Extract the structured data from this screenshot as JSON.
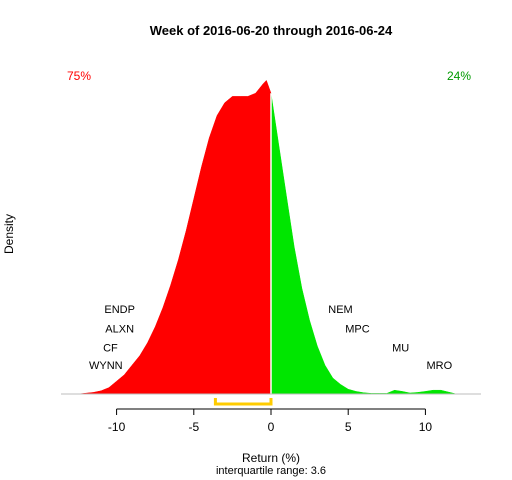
{
  "chart_data": {
    "type": "area",
    "title": "Week of 2016-06-20 through 2016-06-24",
    "xlabel": "Return (%)",
    "subtitle": "interquartile range: 3.6",
    "ylabel": "Density",
    "xlim": [
      -13.6,
      13.6
    ],
    "ylim": [
      0,
      0.105
    ],
    "x_ticks": [
      -10,
      -5,
      0,
      5,
      10
    ],
    "x_tick_labels": [
      "-10",
      "-5",
      "0",
      "5",
      "10"
    ],
    "density": {
      "x": [
        -12.5,
        -11.5,
        -11,
        -10.5,
        -10,
        -9.5,
        -9,
        -8.5,
        -8,
        -7.5,
        -7,
        -6.5,
        -6,
        -5.5,
        -5,
        -4.5,
        -4,
        -3.5,
        -3,
        -2.5,
        -2,
        -1.5,
        -1,
        -0.5,
        -0.3,
        0,
        0.5,
        1,
        1.5,
        2,
        2.5,
        3,
        3.5,
        4,
        4.5,
        5,
        5.5,
        6,
        6.5,
        7,
        7.5,
        8,
        8.5,
        9,
        9.5,
        10,
        10.5,
        11,
        11.5,
        12
      ],
      "y": [
        0,
        0.0005,
        0.001,
        0.002,
        0.004,
        0.006,
        0.009,
        0.012,
        0.016,
        0.021,
        0.027,
        0.034,
        0.042,
        0.051,
        0.061,
        0.071,
        0.08,
        0.087,
        0.091,
        0.093,
        0.093,
        0.093,
        0.094,
        0.097,
        0.098,
        0.094,
        0.078,
        0.062,
        0.046,
        0.033,
        0.023,
        0.015,
        0.009,
        0.005,
        0.003,
        0.0015,
        0.0008,
        0.0004,
        0.0002,
        0.0002,
        0.0002,
        0.0012,
        0.0008,
        0.0003,
        0.0005,
        0.0008,
        0.0012,
        0.0012,
        0.0006,
        0
      ]
    },
    "split_at": 0,
    "left_color": "#ff0000",
    "right_color": "#00e600",
    "left_percent_label": "75%",
    "right_percent_label": "24%",
    "iqr_bracket": {
      "from": -3.6,
      "to": 0,
      "color": "#ffcc00"
    },
    "annotations": [
      {
        "label": "ENDP",
        "x": -9.8,
        "y": 0.0265
      },
      {
        "label": "ALXN",
        "x": -9.8,
        "y": 0.0205
      },
      {
        "label": "CF",
        "x": -10.4,
        "y": 0.0145
      },
      {
        "label": "WYNN",
        "x": -10.7,
        "y": 0.009
      },
      {
        "label": "NEM",
        "x": 4.5,
        "y": 0.0265
      },
      {
        "label": "MPC",
        "x": 5.6,
        "y": 0.0205
      },
      {
        "label": "MU",
        "x": 8.4,
        "y": 0.0145
      },
      {
        "label": "MRO",
        "x": 10.9,
        "y": 0.009
      }
    ]
  }
}
